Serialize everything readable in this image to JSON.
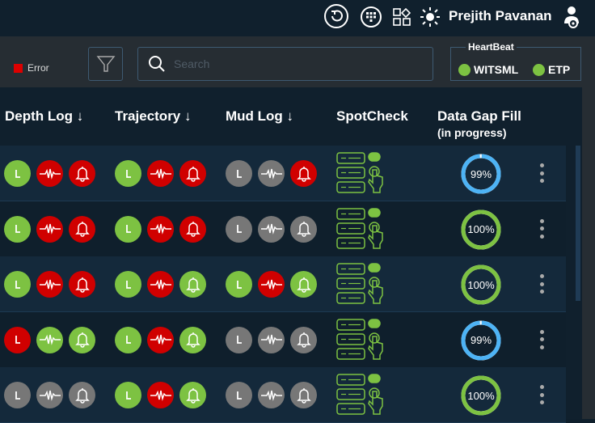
{
  "topbar": {
    "user_name": "Prejith Pavanan",
    "icons": [
      "refresh-icon",
      "keypad-icon",
      "widgets-icon",
      "theme-sun-icon",
      "user-settings-icon"
    ]
  },
  "toolbar": {
    "legend_error": "Error",
    "search_placeholder": "Search",
    "search_value": "",
    "heartbeat": {
      "title": "HeartBeat",
      "items": [
        {
          "label": "WITSML",
          "status": "green"
        },
        {
          "label": "ETP",
          "status": "green"
        }
      ]
    }
  },
  "colors": {
    "green": "#7dc242",
    "red": "#d00000",
    "gray": "#777777",
    "blue": "#4db3f5"
  },
  "columns": {
    "depth_log": "Depth Log ↓",
    "trajectory": "Trajectory ↓",
    "mud_log": "Mud Log ↓",
    "spotcheck": "SpotCheck",
    "data_gap_fill": "Data Gap Fill",
    "data_gap_fill_sub": "(in progress)"
  },
  "rows": [
    {
      "depth_log": [
        "green",
        "red",
        "red"
      ],
      "trajectory": [
        "green",
        "red",
        "red"
      ],
      "mud_log": [
        "gray",
        "gray",
        "red"
      ],
      "gap_fill": "99%",
      "gap_value": 99
    },
    {
      "depth_log": [
        "green",
        "red",
        "red"
      ],
      "trajectory": [
        "green",
        "red",
        "red"
      ],
      "mud_log": [
        "gray",
        "gray",
        "gray"
      ],
      "gap_fill": "100%",
      "gap_value": 100
    },
    {
      "depth_log": [
        "green",
        "red",
        "red"
      ],
      "trajectory": [
        "green",
        "red",
        "green"
      ],
      "mud_log": [
        "green",
        "red",
        "green"
      ],
      "gap_fill": "100%",
      "gap_value": 100
    },
    {
      "depth_log": [
        "red",
        "green",
        "green"
      ],
      "trajectory": [
        "green",
        "red",
        "green"
      ],
      "mud_log": [
        "gray",
        "gray",
        "gray"
      ],
      "gap_fill": "99%",
      "gap_value": 99
    },
    {
      "depth_log": [
        "gray",
        "gray",
        "gray"
      ],
      "trajectory": [
        "green",
        "red",
        "green"
      ],
      "mud_log": [
        "gray",
        "gray",
        "gray"
      ],
      "gap_fill": "100%",
      "gap_value": 100
    }
  ]
}
